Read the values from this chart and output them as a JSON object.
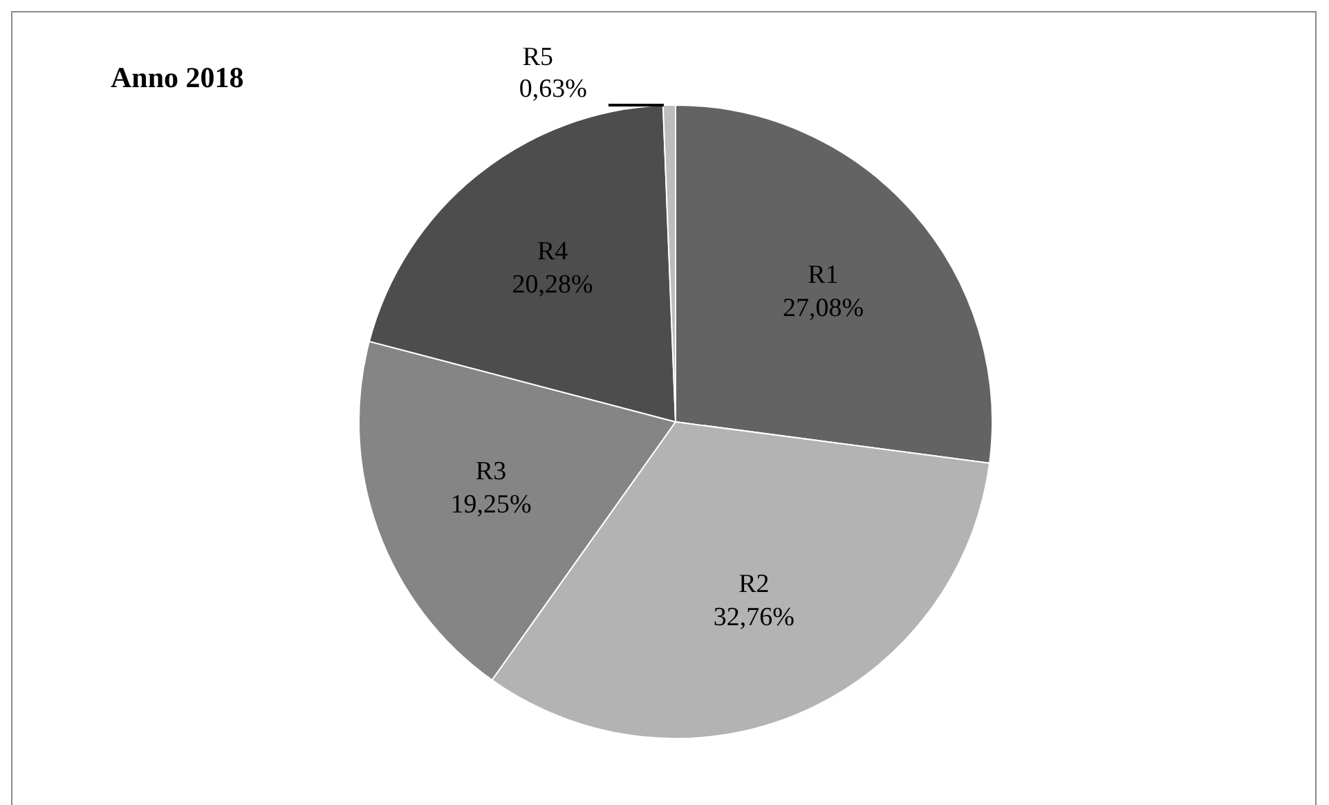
{
  "chart_data": {
    "type": "pie",
    "title": "Anno 2018",
    "categories": [
      "R1",
      "R2",
      "R3",
      "R4",
      "R5"
    ],
    "values": [
      27.08,
      32.76,
      19.25,
      20.28,
      0.63
    ],
    "value_labels": [
      "27,08%",
      "32,76%",
      "19,25%",
      "20,28%",
      "0,63%"
    ],
    "colors": [
      "#636363",
      "#b3b3b3",
      "#858585",
      "#4d4d4d",
      "#bdbdbd"
    ],
    "legend": false
  }
}
